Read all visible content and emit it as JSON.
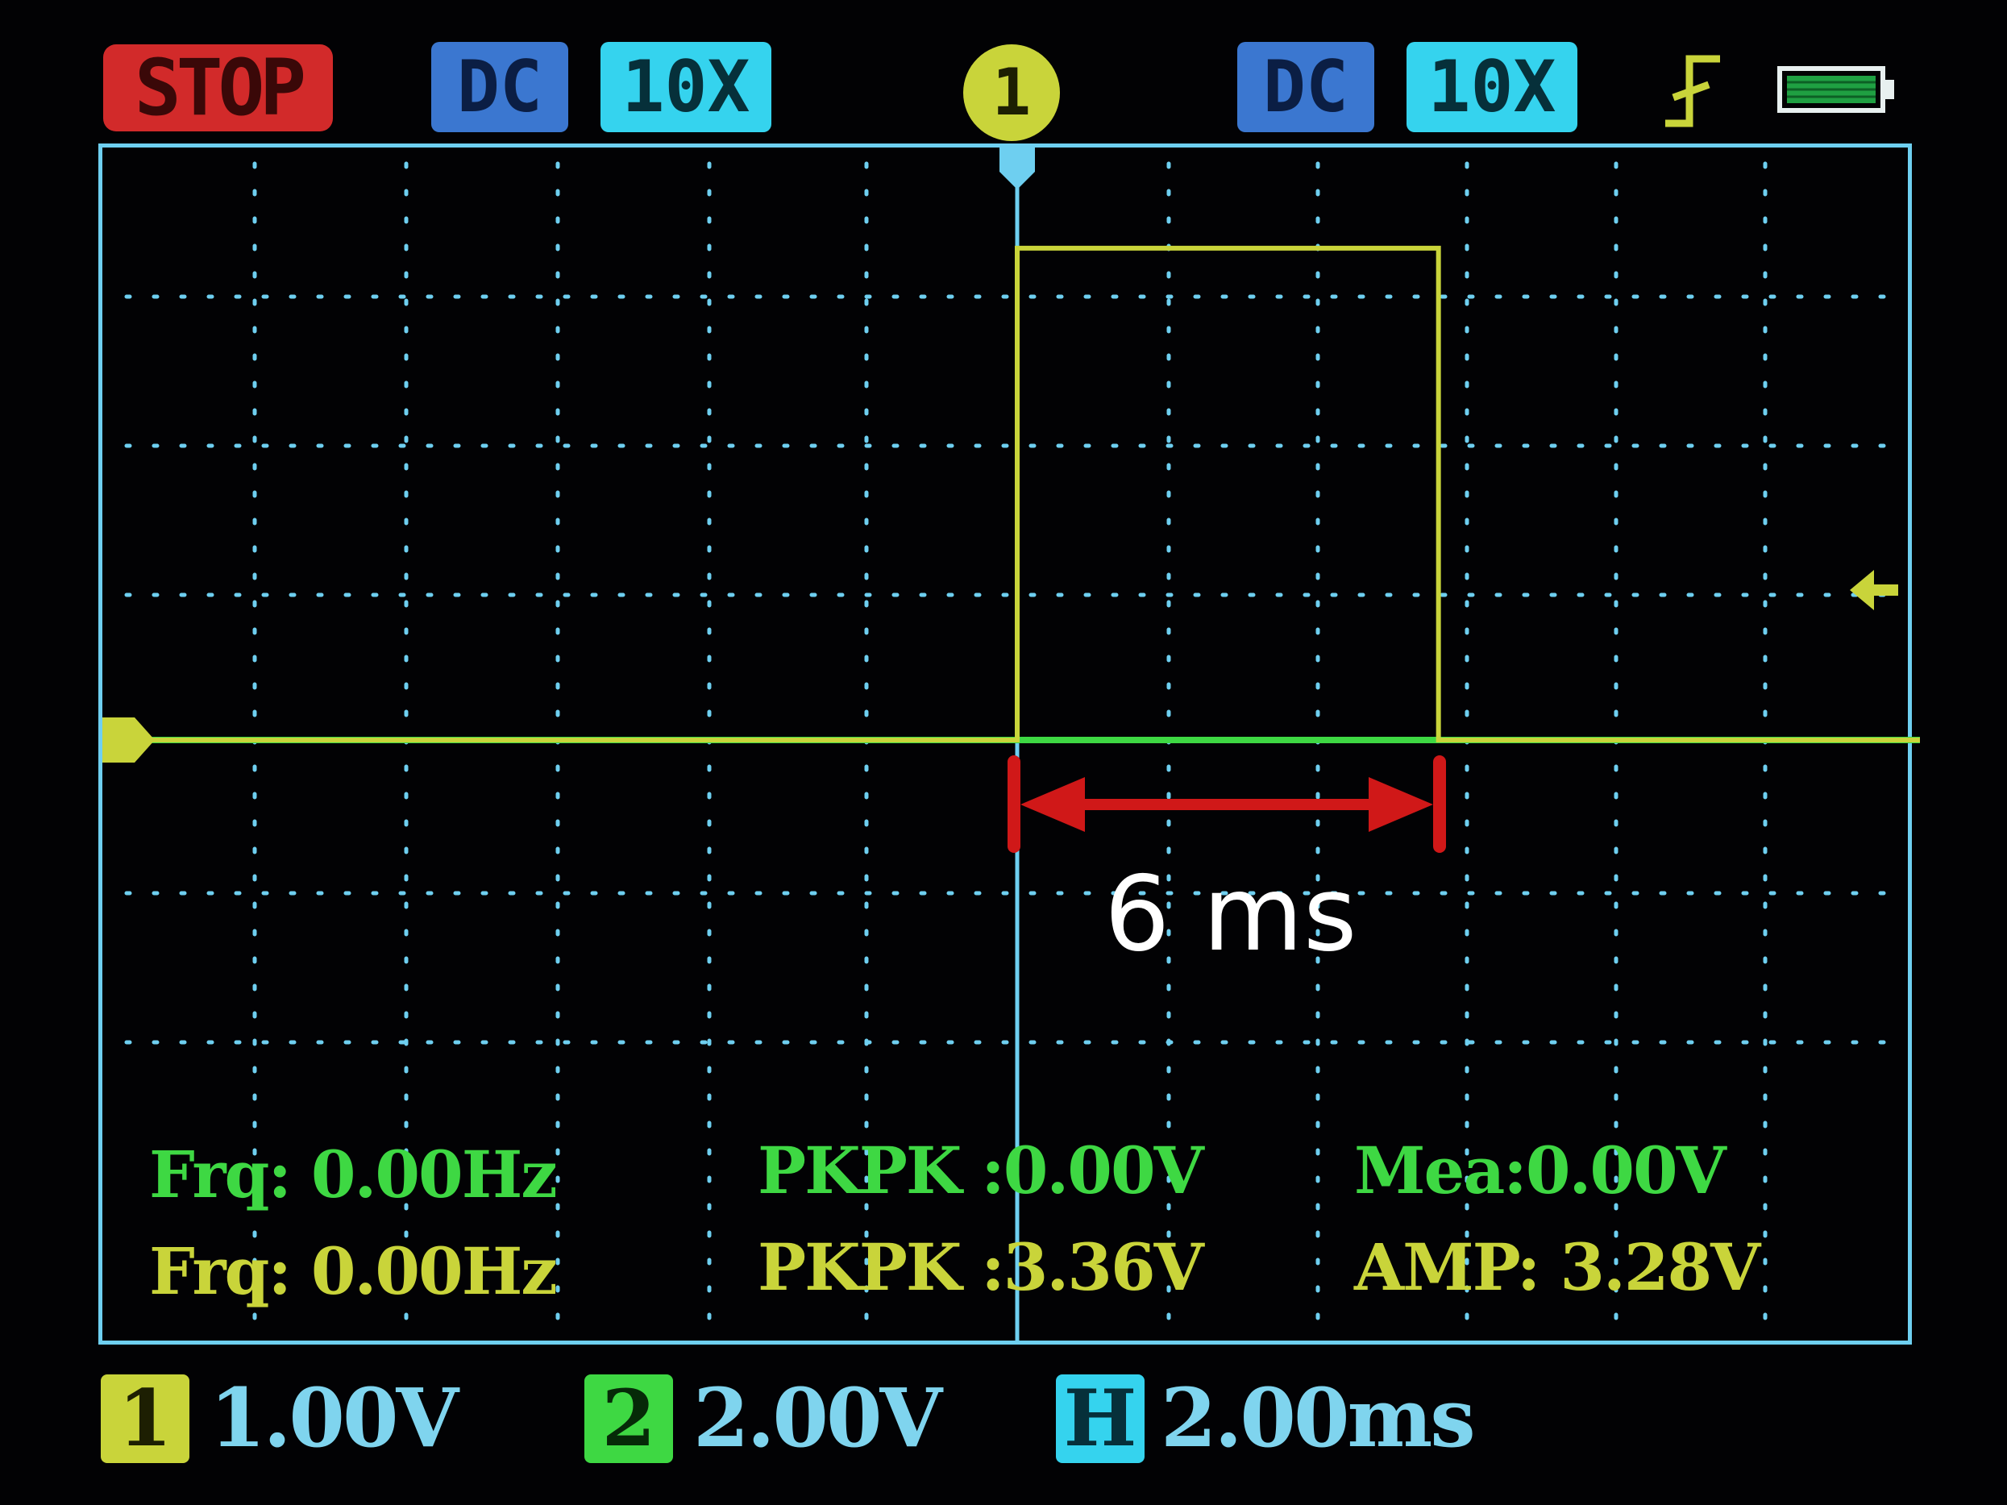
{
  "top_bar": {
    "run_state": "STOP",
    "ch1_coupling": "DC",
    "ch1_probe": "10X",
    "trigger_channel": "1",
    "ch2_coupling": "DC",
    "ch2_probe": "10X",
    "trigger_edge_icon": "rising-edge-icon",
    "battery_icon": "battery-icon",
    "battery_level": 1.0
  },
  "measurements": {
    "ch2_freq": "Frq: 0.00Hz",
    "ch1_freq": "Frq: 0.00Hz",
    "ch2_pkpk": "PKPK :0.00V",
    "ch1_pkpk": "PKPK :3.36V",
    "ch2_mean": "Mea:0.00V",
    "ch1_amp": "AMP: 3.28V"
  },
  "status_bar": {
    "ch1_label": "1",
    "ch1_scale": "1.00V",
    "ch2_label": "2",
    "ch2_scale": "2.00V",
    "timebase_label": "H",
    "timebase": "2.00ms"
  },
  "annotation": {
    "label": "6 ms"
  },
  "colors": {
    "ch1": "#c9d43a",
    "ch2": "#3ed843",
    "grid": "#6ecff0",
    "annotation_arrow": "#d01818",
    "stop": "#d22a2a"
  },
  "chart_data": {
    "type": "line",
    "grid": true,
    "x_unit": "ms",
    "x_range": [
      -12,
      12
    ],
    "series": [
      {
        "name": "1",
        "volts_per_div": 1.0,
        "x": [
          -12,
          0,
          0,
          5.6,
          5.6,
          12
        ],
        "y": [
          0,
          0,
          3.28,
          3.28,
          0,
          0
        ]
      },
      {
        "name": "2",
        "volts_per_div": 2.0,
        "x": [
          -12,
          12
        ],
        "y": [
          0,
          0
        ]
      }
    ]
  }
}
